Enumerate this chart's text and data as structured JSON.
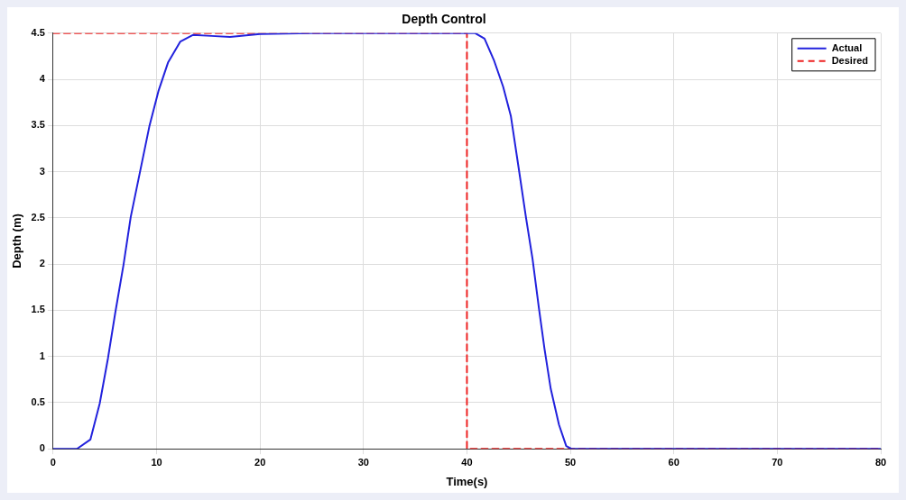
{
  "chart_data": {
    "type": "line",
    "title": "Depth Control",
    "xlabel": "Time(s)",
    "ylabel": "Depth (m)",
    "xlim": [
      0,
      80
    ],
    "xticks": [
      0,
      10,
      20,
      30,
      40,
      50,
      60,
      70,
      80
    ],
    "ylim": [
      0,
      4.5
    ],
    "yticks": [
      0,
      0.5,
      1,
      1.5,
      2,
      2.5,
      3,
      3.5,
      4,
      4.5
    ],
    "grid": true,
    "legend": "top right",
    "marker": "none",
    "series": [
      {
        "name": "Actual",
        "color": "#2222dd",
        "line_style": "solid",
        "x": [
          0,
          2.3,
          3.6,
          4.5,
          5.3,
          6.0,
          6.8,
          7.5,
          8.4,
          9.3,
          10.2,
          11.1,
          12.3,
          13.5,
          15.3,
          17.1,
          20,
          25,
          40,
          40.8,
          41.7,
          42.6,
          43.5,
          44.25,
          45.0,
          45.7,
          46.35,
          46.95,
          47.5,
          48.1,
          48.9,
          49.6,
          50.1,
          80
        ],
        "values": [
          0,
          0,
          0.1,
          0.49,
          0.98,
          1.47,
          1.99,
          2.51,
          3.0,
          3.49,
          3.88,
          4.18,
          4.41,
          4.48,
          4.47,
          4.46,
          4.49,
          4.5,
          4.5,
          4.5,
          4.44,
          4.21,
          3.92,
          3.6,
          3.04,
          2.51,
          2.05,
          1.53,
          1.08,
          0.65,
          0.26,
          0.03,
          0,
          0
        ]
      },
      {
        "name": "Desired",
        "color": "#ee2222",
        "line_style": "dashed",
        "x": [
          0,
          40,
          40,
          80
        ],
        "values": [
          4.5,
          4.5,
          0,
          0
        ]
      }
    ]
  }
}
